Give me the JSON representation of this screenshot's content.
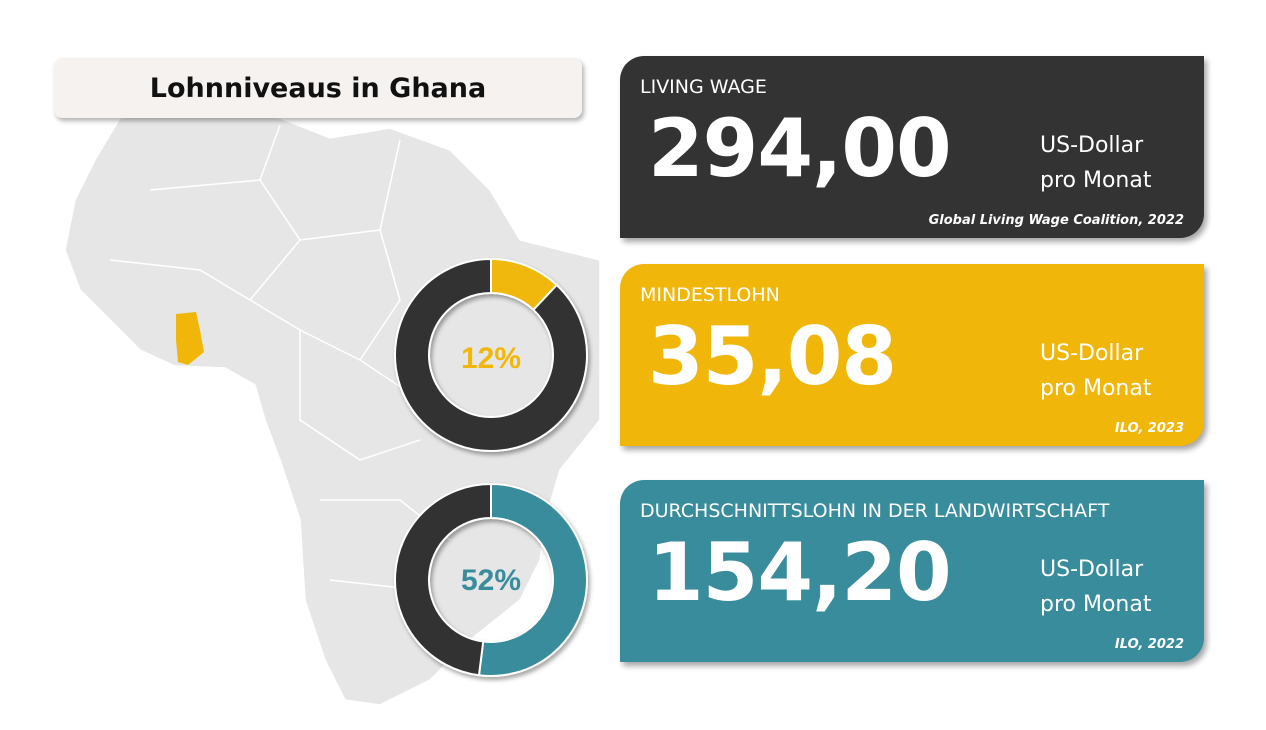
{
  "title": "Lohnniveaus in Ghana",
  "colors": {
    "dark": "#333333",
    "yellow": "#f0b70a",
    "teal": "#398c9c",
    "map": "#e6e6e6",
    "ghana": "#f0b70a"
  },
  "cards": [
    {
      "label": "LIVING WAGE",
      "value": "294,00",
      "unit_line1": "US-Dollar",
      "unit_line2": "pro Monat",
      "source": "Global Living Wage Coalition, 2022",
      "color": "#333333"
    },
    {
      "label": "MINDESTLOHN",
      "value": "35,08",
      "unit_line1": "US-Dollar",
      "unit_line2": "pro Monat",
      "source": "ILO, 2023",
      "color": "#f0b70a"
    },
    {
      "label": "DURCHSCHNITTSLOHN IN DER LANDWIRTSCHAFT",
      "value": "154,20",
      "unit_line1": "US-Dollar",
      "unit_line2": "pro Monat",
      "source": "ILO, 2022",
      "color": "#398c9c"
    }
  ],
  "chart_data": [
    {
      "type": "pie",
      "donut": true,
      "label": "12%",
      "values": [
        12,
        88
      ],
      "colors": [
        "#f0b70a",
        "#333333"
      ]
    },
    {
      "type": "pie",
      "donut": true,
      "label": "52%",
      "values": [
        52,
        48
      ],
      "colors": [
        "#398c9c",
        "#333333"
      ]
    }
  ]
}
